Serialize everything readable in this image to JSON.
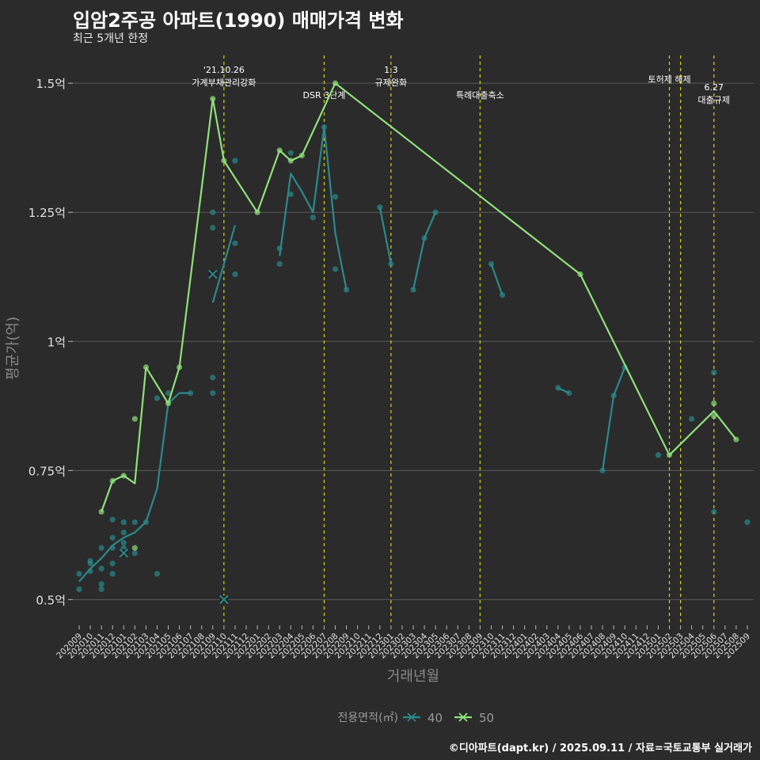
{
  "chart_data": {
    "type": "line",
    "title": "입암2주공 아파트(1990) 매매가격 변화",
    "subtitle": "최근 5개년 한정",
    "xlabel": "거래년월",
    "ylabel": "평균가(억)",
    "caption": "©디아파트(dapt.kr) / 2025.09.11 / 자료=국토교통부 실거래가",
    "legend_title": "전용면적(㎡)",
    "legend_position": "bottom",
    "ylim": [
      0.45,
      1.56
    ],
    "yticks": [
      0.5,
      0.75,
      1.0,
      1.25,
      1.5
    ],
    "ytick_labels": [
      "0.5억",
      "0.75억",
      "1억",
      "1.25억",
      "1.5억"
    ],
    "x": [
      "202009",
      "202010",
      "202011",
      "202012",
      "202101",
      "202102",
      "202103",
      "202104",
      "202105",
      "202106",
      "202107",
      "202108",
      "202109",
      "202110",
      "202111",
      "202112",
      "202201",
      "202202",
      "202203",
      "202204",
      "202205",
      "202206",
      "202207",
      "202208",
      "202209",
      "202210",
      "202211",
      "202212",
      "202301",
      "202302",
      "202303",
      "202304",
      "202305",
      "202306",
      "202307",
      "202308",
      "202309",
      "202310",
      "202311",
      "202312",
      "202401",
      "202402",
      "202403",
      "202404",
      "202405",
      "202406",
      "202407",
      "202408",
      "202409",
      "202410",
      "202411",
      "202412",
      "202501",
      "202502",
      "202503",
      "202504",
      "202505",
      "202506",
      "202507",
      "202508",
      "202509"
    ],
    "series": [
      {
        "name": "40",
        "color": "#2a8a8c",
        "lines": [
          [
            [
              "202009",
              0.535
            ],
            [
              "202010",
              0.56
            ],
            [
              "202011",
              0.58
            ],
            [
              "202012",
              0.605
            ],
            [
              "202101",
              0.62
            ],
            [
              "202102",
              0.63
            ],
            [
              "202103",
              0.65
            ],
            [
              "202104",
              0.715
            ],
            [
              "202105",
              0.88
            ],
            [
              "202106",
              0.9
            ],
            [
              "202107",
              0.9
            ]
          ],
          [
            [
              "202109",
              1.075
            ],
            [
              "202110",
              1.15
            ],
            [
              "202111",
              1.225
            ]
          ],
          [
            [
              "202203",
              1.165
            ],
            [
              "202204",
              1.325
            ],
            [
              "202205",
              1.29
            ],
            [
              "202206",
              1.25
            ],
            [
              "202207",
              1.415
            ],
            [
              "202208",
              1.21
            ],
            [
              "202209",
              1.1
            ]
          ],
          [
            [
              "202212",
              1.26
            ],
            [
              "202301",
              1.15
            ]
          ],
          [
            [
              "202303",
              1.1
            ],
            [
              "202304",
              1.2
            ],
            [
              "202305",
              1.25
            ]
          ],
          [
            [
              "202310",
              1.15
            ],
            [
              "202311",
              1.09
            ]
          ],
          [
            [
              "202404",
              0.91
            ],
            [
              "202405",
              0.9
            ]
          ],
          [
            [
              "202408",
              0.75
            ],
            [
              "202409",
              0.895
            ],
            [
              "202410",
              0.95
            ]
          ]
        ],
        "points": [
          [
            "202009",
            0.55
          ],
          [
            "202009",
            0.52
          ],
          [
            "202010",
            0.575
          ],
          [
            "202010",
            0.555
          ],
          [
            "202010",
            0.57
          ],
          [
            "202011",
            0.6
          ],
          [
            "202011",
            0.56
          ],
          [
            "202011",
            0.53
          ],
          [
            "202011",
            0.52
          ],
          [
            "202012",
            0.655
          ],
          [
            "202012",
            0.62
          ],
          [
            "202012",
            0.6
          ],
          [
            "202012",
            0.57
          ],
          [
            "202012",
            0.55
          ],
          [
            "202101",
            0.65
          ],
          [
            "202101",
            0.63
          ],
          [
            "202101",
            0.61
          ],
          [
            "202101",
            0.6
          ],
          [
            "202101",
            0.59
          ],
          [
            "202102",
            0.65
          ],
          [
            "202102",
            0.59
          ],
          [
            "202103",
            0.65
          ],
          [
            "202104",
            0.89
          ],
          [
            "202104",
            0.55
          ],
          [
            "202105",
            0.9
          ],
          [
            "202107",
            0.9
          ],
          [
            "202109",
            1.25
          ],
          [
            "202109",
            1.22
          ],
          [
            "202109",
            0.93
          ],
          [
            "202109",
            0.9
          ],
          [
            "202111",
            1.35
          ],
          [
            "202111",
            1.19
          ],
          [
            "202111",
            1.13
          ],
          [
            "202203",
            1.18
          ],
          [
            "202203",
            1.15
          ],
          [
            "202204",
            1.365
          ],
          [
            "202204",
            1.285
          ],
          [
            "202206",
            1.24
          ],
          [
            "202207",
            1.415
          ],
          [
            "202208",
            1.28
          ],
          [
            "202208",
            1.14
          ],
          [
            "202209",
            1.1
          ],
          [
            "202212",
            1.26
          ],
          [
            "202301",
            1.15
          ],
          [
            "202303",
            1.1
          ],
          [
            "202304",
            1.2
          ],
          [
            "202305",
            1.25
          ],
          [
            "202310",
            1.15
          ],
          [
            "202311",
            1.09
          ],
          [
            "202404",
            0.91
          ],
          [
            "202405",
            0.9
          ],
          [
            "202408",
            0.75
          ],
          [
            "202409",
            0.895
          ],
          [
            "202410",
            0.95
          ],
          [
            "202501",
            0.78
          ],
          [
            "202504",
            0.85
          ],
          [
            "202506",
            0.94
          ],
          [
            "202506",
            0.67
          ],
          [
            "202509",
            0.65
          ]
        ],
        "x_marks": [
          [
            "202109",
            1.13
          ],
          [
            "202110",
            0.5
          ],
          [
            "202101",
            0.59
          ]
        ]
      },
      {
        "name": "50",
        "color": "#8fe07a",
        "lines": [
          [
            [
              "202011",
              0.67
            ],
            [
              "202012",
              0.73
            ],
            [
              "202101",
              0.74
            ],
            [
              "202102",
              0.725
            ],
            [
              "202103",
              0.95
            ],
            [
              "202105",
              0.88
            ],
            [
              "202106",
              0.95
            ],
            [
              "202109",
              1.47
            ],
            [
              "202110",
              1.35
            ],
            [
              "202201",
              1.25
            ],
            [
              "202203",
              1.37
            ],
            [
              "202204",
              1.35
            ],
            [
              "202205",
              1.36
            ],
            [
              "202208",
              1.5
            ],
            [
              "202406",
              1.13
            ],
            [
              "202502",
              0.78
            ],
            [
              "202506",
              0.865
            ],
            [
              "202508",
              0.81
            ]
          ]
        ],
        "points": [
          [
            "202011",
            0.67
          ],
          [
            "202012",
            0.73
          ],
          [
            "202101",
            0.74
          ],
          [
            "202102",
            0.85
          ],
          [
            "202102",
            0.6
          ],
          [
            "202103",
            0.95
          ],
          [
            "202105",
            0.88
          ],
          [
            "202106",
            0.95
          ],
          [
            "202109",
            1.47
          ],
          [
            "202110",
            1.35
          ],
          [
            "202201",
            1.25
          ],
          [
            "202203",
            1.37
          ],
          [
            "202204",
            1.35
          ],
          [
            "202205",
            1.36
          ],
          [
            "202208",
            1.5
          ],
          [
            "202406",
            1.13
          ],
          [
            "202502",
            0.78
          ],
          [
            "202506",
            0.88
          ],
          [
            "202506",
            0.855
          ],
          [
            "202508",
            0.81
          ]
        ],
        "x_marks": []
      }
    ],
    "vlines": [
      {
        "x": "202110",
        "lines": [
          "'21.10.26",
          "가계부채관리강화"
        ],
        "level": 1
      },
      {
        "x": "202207",
        "lines": [
          "DSR 3단계"
        ],
        "level": 3
      },
      {
        "x": "202301",
        "lines": [
          "1.3",
          "규제완화"
        ],
        "level": 1
      },
      {
        "x": "202309",
        "lines": [
          "특례대출축소"
        ],
        "level": 3
      },
      {
        "x": "202502",
        "lines": [
          "토허제 해제"
        ],
        "level": 2
      },
      {
        "x": "202503",
        "lines": [],
        "level": 0
      },
      {
        "x": "202506",
        "lines": [
          "6.27",
          "대출규제"
        ],
        "level": 4
      }
    ]
  }
}
